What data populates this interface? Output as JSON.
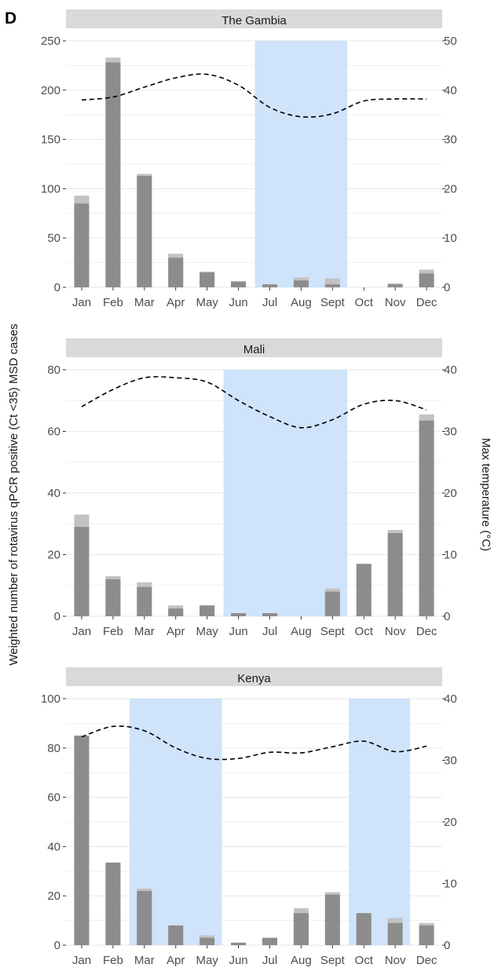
{
  "figure_label": "D",
  "colors": {
    "bar_total": "#c2c2c2",
    "bar_main": "#8c8c8c",
    "shade": "#cfe3fb",
    "strip": "#d9d9d9",
    "grid": "#ebebeb",
    "line": "#000000"
  },
  "chart_data": [
    {
      "type": "bar",
      "title": "The Gambia",
      "categories": [
        "Jan",
        "Feb",
        "Mar",
        "Apr",
        "May",
        "Jun",
        "Jul",
        "Aug",
        "Sept",
        "Oct",
        "Nov",
        "Dec"
      ],
      "ylabel": "Weighted number of rotavirus qPCR positive (Ct <35) MSD cases",
      "y2label": "Max temperature (°C)",
      "ylim": [
        0,
        250
      ],
      "yticks": [
        "0",
        "50",
        "100",
        "150",
        "200",
        "250"
      ],
      "y2lim": [
        0,
        50
      ],
      "y2ticks": [
        "0",
        "10",
        "20",
        "30",
        "40",
        "50"
      ],
      "series": [
        {
          "values": [
            93,
            233,
            115,
            34,
            16,
            6,
            3,
            10,
            9,
            0,
            4,
            18
          ]
        },
        {
          "values": [
            85,
            228,
            113,
            30,
            15,
            6,
            3,
            7,
            3,
            0,
            3,
            14
          ]
        }
      ],
      "temperature": [
        38.0,
        38.6,
        40.6,
        42.5,
        43.2,
        41.0,
        36.5,
        34.6,
        35.2,
        37.8,
        38.2,
        38.2
      ],
      "rainy_season": [
        [
          "Jul",
          "Sept"
        ]
      ]
    },
    {
      "type": "bar",
      "title": "Mali",
      "categories": [
        "Jan",
        "Feb",
        "Mar",
        "Apr",
        "May",
        "Jun",
        "Jul",
        "Aug",
        "Sept",
        "Oct",
        "Nov",
        "Dec"
      ],
      "ylim": [
        0,
        80
      ],
      "yticks": [
        "0",
        "20",
        "40",
        "60",
        "80"
      ],
      "y2lim": [
        0,
        40
      ],
      "y2ticks": [
        "0",
        "10",
        "20",
        "30",
        "40"
      ],
      "series": [
        {
          "values": [
            33,
            13,
            11,
            3.5,
            3.5,
            1,
            1,
            0,
            9,
            17,
            28,
            65.5
          ]
        },
        {
          "values": [
            29,
            12,
            9.5,
            2.5,
            3.5,
            1,
            1,
            0,
            8,
            17,
            27,
            63.5
          ]
        }
      ],
      "temperature": [
        34.0,
        36.8,
        38.7,
        38.7,
        38.0,
        35.0,
        32.4,
        30.6,
        31.9,
        34.4,
        35.0,
        33.5
      ],
      "rainy_season": [
        [
          "Jun",
          "Sept"
        ]
      ]
    },
    {
      "type": "bar",
      "title": "Kenya",
      "categories": [
        "Jan",
        "Feb",
        "Mar",
        "Apr",
        "May",
        "Jun",
        "Jul",
        "Aug",
        "Sept",
        "Oct",
        "Nov",
        "Dec"
      ],
      "ylim": [
        0,
        100
      ],
      "yticks": [
        "0",
        "20",
        "40",
        "60",
        "80",
        "100"
      ],
      "y2lim": [
        0,
        40
      ],
      "y2ticks": [
        "0",
        "10",
        "20",
        "30",
        "40"
      ],
      "series": [
        {
          "values": [
            85,
            33.5,
            23,
            8,
            4,
            1,
            3,
            15,
            21.5,
            13,
            11,
            9
          ]
        },
        {
          "values": [
            85,
            33.5,
            22,
            8,
            3,
            1,
            3,
            13,
            20.5,
            13,
            9,
            8
          ]
        }
      ],
      "temperature": [
        33.8,
        35.5,
        34.8,
        32.0,
        30.3,
        30.3,
        31.3,
        31.2,
        32.2,
        33.1,
        31.4,
        32.3
      ],
      "rainy_season": [
        [
          "Mar",
          "May"
        ],
        [
          "Oct",
          "Nov"
        ]
      ]
    }
  ]
}
